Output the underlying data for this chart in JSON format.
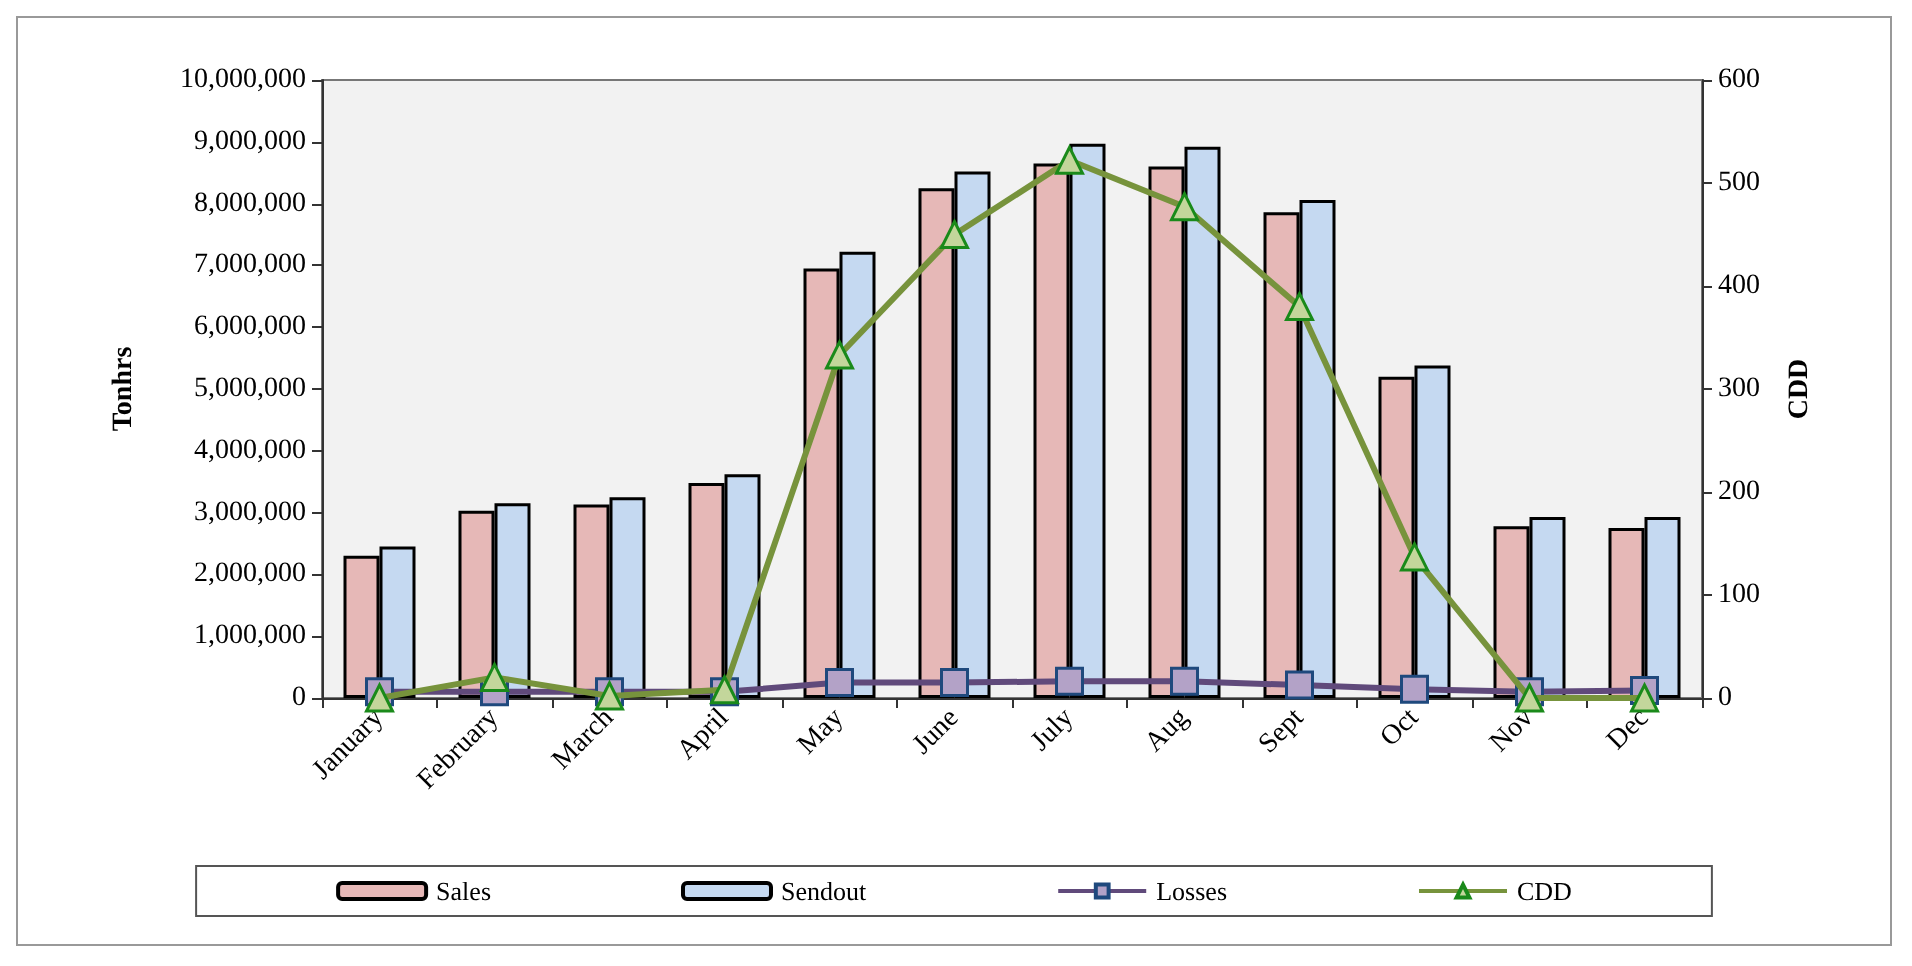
{
  "chart_data": {
    "type": "bar",
    "ylabel": "Tonhrs",
    "y2label": "CDD",
    "categories": [
      "January",
      "February",
      "March",
      "April",
      "May",
      "June",
      "July",
      "Aug",
      "Sept",
      "Oct",
      "Nov",
      "Dec"
    ],
    "series": [
      {
        "name": "Sales",
        "color": "#e6b8b7",
        "values": [
          2300000,
          3030000,
          3130000,
          3480000,
          6950000,
          8250000,
          8650000,
          8600000,
          7860000,
          5200000,
          2780000,
          2750000
        ]
      },
      {
        "name": "Sendout",
        "color": "#c5d9f1",
        "values": [
          2450000,
          3150000,
          3250000,
          3620000,
          7220000,
          8520000,
          8970000,
          8920000,
          8060000,
          5380000,
          2930000,
          2930000
        ]
      },
      {
        "name": "Losses",
        "type": "line",
        "color": "#604a7b",
        "marker": "square",
        "values": [
          100000,
          100000,
          100000,
          100000,
          250000,
          250000,
          270000,
          270000,
          210000,
          140000,
          100000,
          120000
        ]
      },
      {
        "name": "CDD",
        "type": "line",
        "color": "#77933c",
        "marker": "triangle",
        "axis": "y2",
        "values": [
          0,
          20,
          2,
          8,
          333,
          450,
          522,
          477,
          380,
          137,
          0,
          0
        ]
      }
    ],
    "ylim": [
      0,
      10000000
    ],
    "yticks": [
      0,
      {
        "value": 1000000,
        "label": "1,000,000"
      },
      {
        "value": 2000000,
        "label": "2,000,000"
      },
      {
        "value": 3000000,
        "label": "3,000,000"
      },
      {
        "value": 4000000,
        "label": "4,000,000"
      },
      {
        "value": 5000000,
        "label": "5,000,000"
      },
      {
        "value": 6000000,
        "label": "6,000,000"
      },
      {
        "value": 7000000,
        "label": "7,000,000"
      },
      {
        "value": 8000000,
        "label": "8,000,000"
      },
      {
        "value": 9000000,
        "label": "9,000,000"
      },
      {
        "value": 10000000,
        "label": "10,000,000"
      }
    ],
    "y2lim": [
      0,
      600
    ],
    "y2ticks": [
      0,
      100,
      200,
      300,
      400,
      500,
      600
    ],
    "grid": false,
    "legend": "bottom"
  }
}
